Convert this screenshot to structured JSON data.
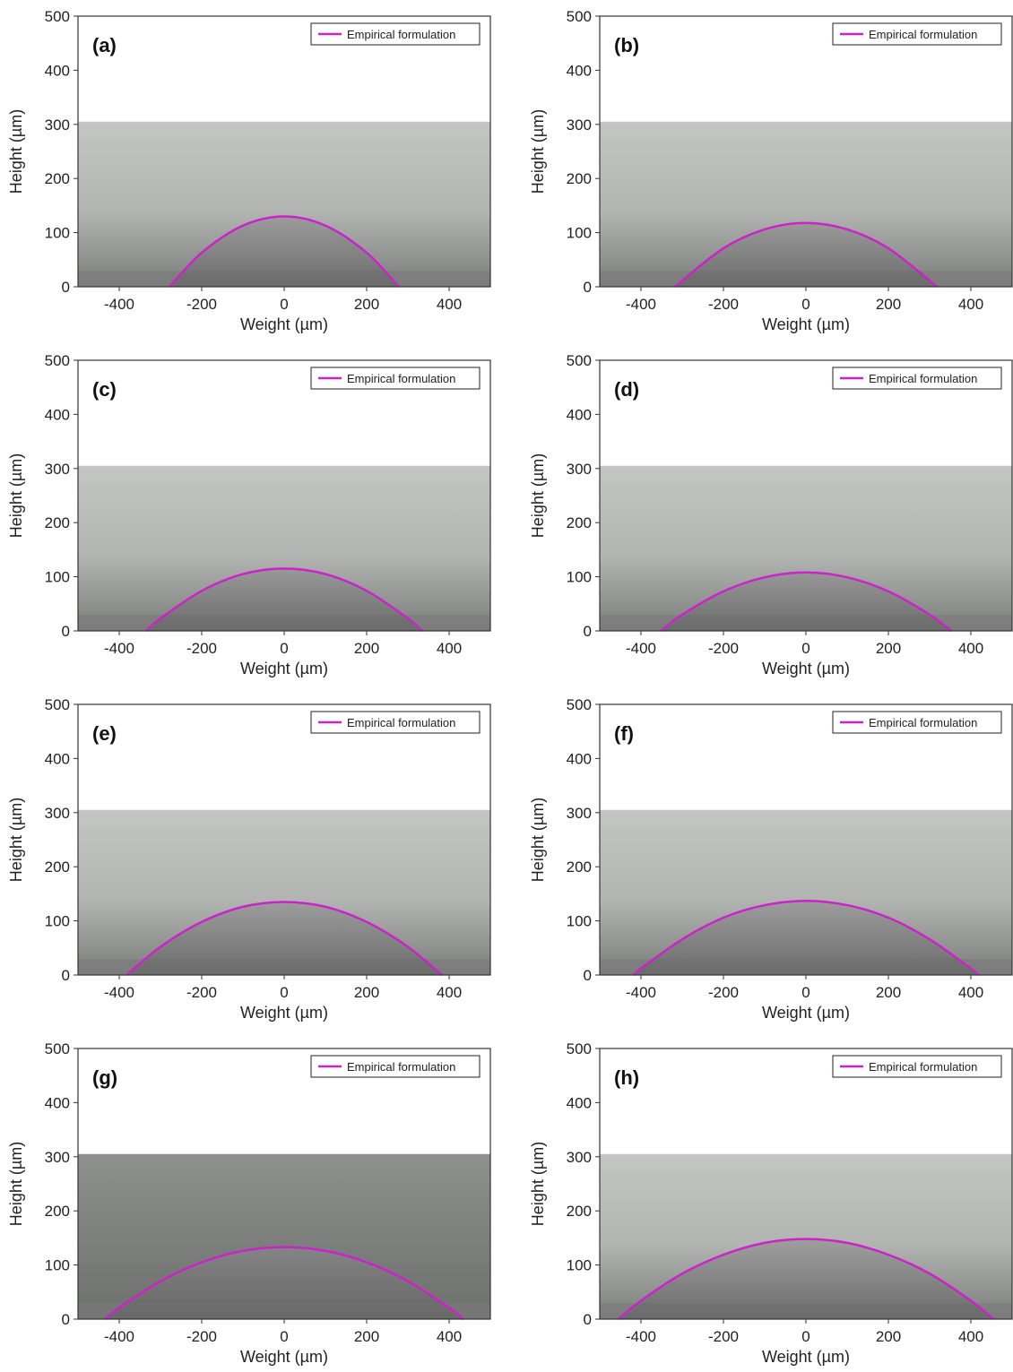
{
  "chart_data": [
    {
      "type": "line",
      "label": "(a)",
      "xlabel": "Weight (µm)",
      "ylabel": "Height (µm)",
      "xlim": [
        -500,
        500
      ],
      "ylim": [
        0,
        500
      ],
      "xticks": [
        -400,
        -200,
        0,
        200,
        400
      ],
      "yticks": [
        0,
        100,
        200,
        300,
        400,
        500
      ],
      "x": [
        -278,
        -200,
        -100,
        0,
        100,
        200,
        278
      ],
      "series": [
        {
          "name": "Empirical formulation",
          "color": "#cc22cc",
          "values": [
            0,
            63,
            113,
            130,
            113,
            63,
            0
          ]
        }
      ]
    },
    {
      "type": "line",
      "label": "(b)",
      "xlabel": "Weight (µm)",
      "ylabel": "Height (µm)",
      "xlim": [
        -500,
        500
      ],
      "ylim": [
        0,
        500
      ],
      "xticks": [
        -400,
        -200,
        0,
        200,
        400
      ],
      "yticks": [
        0,
        100,
        200,
        300,
        400,
        500
      ],
      "x": [
        -318,
        -200,
        -100,
        0,
        100,
        200,
        318
      ],
      "series": [
        {
          "name": "Empirical formulation",
          "color": "#cc22cc",
          "values": [
            0,
            71,
            106,
            118,
            106,
            71,
            0
          ]
        }
      ]
    },
    {
      "type": "line",
      "label": "(c)",
      "xlabel": "Weight (µm)",
      "ylabel": "Height (µm)",
      "xlim": [
        -500,
        500
      ],
      "ylim": [
        0,
        500
      ],
      "xticks": [
        -400,
        -200,
        0,
        200,
        400
      ],
      "yticks": [
        0,
        100,
        200,
        300,
        400,
        500
      ],
      "x": [
        -335,
        -300,
        -200,
        -100,
        0,
        100,
        200,
        300,
        335
      ],
      "series": [
        {
          "name": "Empirical formulation",
          "color": "#cc22cc",
          "values": [
            0,
            23,
            74,
            105,
            115,
            105,
            74,
            23,
            0
          ]
        }
      ]
    },
    {
      "type": "line",
      "label": "(d)",
      "xlabel": "Weight (µm)",
      "ylabel": "Height (µm)",
      "xlim": [
        -500,
        500
      ],
      "ylim": [
        0,
        500
      ],
      "xticks": [
        -400,
        -200,
        0,
        200,
        400
      ],
      "yticks": [
        0,
        100,
        200,
        300,
        400,
        500
      ],
      "x": [
        -352,
        -300,
        -200,
        -100,
        0,
        100,
        200,
        300,
        352
      ],
      "series": [
        {
          "name": "Empirical formulation",
          "color": "#cc22cc",
          "values": [
            0,
            30,
            73,
            99,
            108,
            99,
            73,
            30,
            0
          ]
        }
      ]
    },
    {
      "type": "line",
      "label": "(e)",
      "xlabel": "Weight (µm)",
      "ylabel": "Height (µm)",
      "xlim": [
        -500,
        500
      ],
      "ylim": [
        0,
        500
      ],
      "xticks": [
        -400,
        -200,
        0,
        200,
        400
      ],
      "yticks": [
        0,
        100,
        200,
        300,
        400,
        500
      ],
      "x": [
        -382,
        -300,
        -200,
        -100,
        0,
        100,
        200,
        300,
        382
      ],
      "series": [
        {
          "name": "Empirical formulation",
          "color": "#cc22cc",
          "values": [
            0,
            52,
            98,
            126,
            135,
            126,
            98,
            52,
            0
          ]
        }
      ]
    },
    {
      "type": "line",
      "label": "(f)",
      "xlabel": "Weight (µm)",
      "ylabel": "Height (µm)",
      "xlim": [
        -500,
        500
      ],
      "ylim": [
        0,
        500
      ],
      "xticks": [
        -400,
        -200,
        0,
        200,
        400
      ],
      "yticks": [
        0,
        100,
        200,
        300,
        400,
        500
      ],
      "x": [
        -418,
        -400,
        -300,
        -200,
        -100,
        0,
        100,
        200,
        300,
        400,
        418
      ],
      "series": [
        {
          "name": "Empirical formulation",
          "color": "#cc22cc",
          "values": [
            0,
            12,
            66,
            106,
            129,
            137,
            129,
            106,
            66,
            12,
            0
          ]
        }
      ]
    },
    {
      "type": "line",
      "label": "(g)",
      "xlabel": "Weight (µm)",
      "ylabel": "Height (µm)",
      "xlim": [
        -500,
        500
      ],
      "ylim": [
        0,
        500
      ],
      "xticks": [
        -400,
        -200,
        0,
        200,
        400
      ],
      "yticks": [
        0,
        100,
        200,
        300,
        400,
        500
      ],
      "x": [
        -435,
        -400,
        -300,
        -200,
        -100,
        0,
        100,
        200,
        300,
        400,
        435
      ],
      "series": [
        {
          "name": "Empirical formulation",
          "color": "#cc22cc",
          "values": [
            0,
            21,
            70,
            105,
            126,
            133,
            126,
            105,
            70,
            21,
            0
          ]
        }
      ]
    },
    {
      "type": "line",
      "label": "(h)",
      "xlabel": "Weight (µm)",
      "ylabel": "Height (µm)",
      "xlim": [
        -500,
        500
      ],
      "ylim": [
        0,
        500
      ],
      "xticks": [
        -400,
        -200,
        0,
        200,
        400
      ],
      "yticks": [
        0,
        100,
        200,
        300,
        400,
        500
      ],
      "x": [
        -455,
        -400,
        -300,
        -200,
        -100,
        0,
        100,
        200,
        300,
        400,
        455
      ],
      "series": [
        {
          "name": "Empirical formulation",
          "color": "#cc22cc",
          "values": [
            0,
            34,
            84,
            119,
            141,
            148,
            141,
            119,
            84,
            34,
            0
          ]
        }
      ]
    }
  ]
}
